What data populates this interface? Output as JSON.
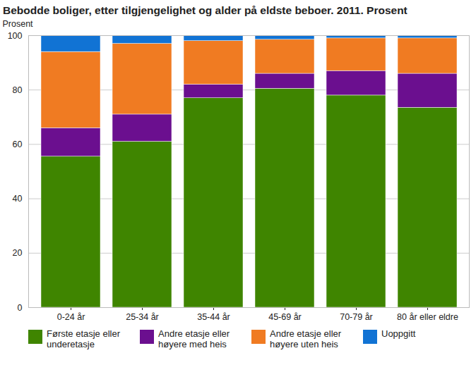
{
  "chart_data": {
    "type": "bar",
    "stacked": true,
    "title": "Bebodde boliger, etter tilgjengelighet og alder på eldste beboer. 2011. Prosent",
    "y_label": "Prosent",
    "categories": [
      "0-24 år",
      "25-34 år",
      "35-44 år",
      "45-69 år",
      "70-79 år",
      "80 år eller eldre"
    ],
    "series": [
      {
        "name": "Første etasje eller underetasje",
        "color": "#3f8500",
        "values": [
          55.5,
          61,
          77,
          80.5,
          78,
          73.5
        ]
      },
      {
        "name": "Andre etasje eller høyere med heis",
        "color": "#6b0f8f",
        "values": [
          10.5,
          10,
          5,
          5.5,
          9,
          12.5
        ]
      },
      {
        "name": "Andre etasje eller høyere uten heis",
        "color": "#f07b22",
        "values": [
          28,
          26,
          16,
          12.5,
          12,
          13
        ]
      },
      {
        "name": "Uoppgitt",
        "color": "#1173d4",
        "values": [
          6,
          3,
          2,
          1.5,
          1,
          1
        ]
      }
    ],
    "ylim": [
      0,
      100
    ],
    "yticks": [
      0,
      20,
      40,
      60,
      80,
      100
    ],
    "grid": true,
    "legend": "bottom"
  }
}
